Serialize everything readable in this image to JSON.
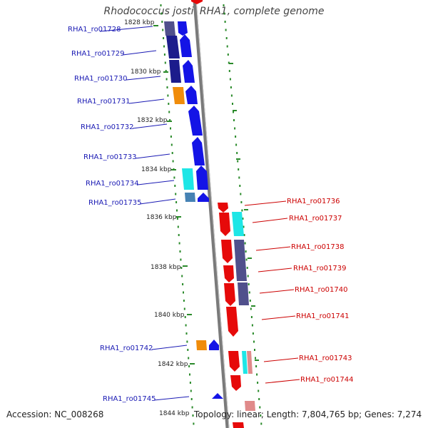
{
  "title": "Rhodococcus jostii RHA1, complete genome",
  "footer": {
    "accession": "Accession: NC_008268",
    "summary": "Topology: linear; Length: 7,804,765 bp; Genes: 7,274"
  },
  "colors": {
    "backbone": "#7a7a7a",
    "left_label": "#1a1ab4",
    "right_label": "#cc0000",
    "tick_dot": "#2a8a2a",
    "navy": "#1c1c8c",
    "blue": "#1414e6",
    "orange": "#f08c0a",
    "cyan": "#1ee6e6",
    "steel": "#4682b4",
    "red": "#e60a0a",
    "purple": "#50508c",
    "pink": "#e08a8a"
  },
  "scale_labels": [
    "1828 kbp",
    "1830 kbp",
    "1832 kbp",
    "1834 kbp",
    "1836 kbp",
    "1838 kbp",
    "1840 kbp",
    "1842 kbp",
    "1844 kbp"
  ],
  "left_genes": [
    "RHA1_ro01728",
    "RHA1_ro01729",
    "RHA1_ro01730",
    "RHA1_ro01731",
    "RHA1_ro01732",
    "RHA1_ro01733",
    "RHA1_ro01734",
    "RHA1_ro01735",
    "RHA1_ro01742",
    "RHA1_ro01745"
  ],
  "right_genes": [
    "RHA1_ro01736",
    "RHA1_ro01737",
    "RHA1_ro01738",
    "RHA1_ro01739",
    "RHA1_ro01740",
    "RHA1_ro01741",
    "RHA1_ro01743",
    "RHA1_ro01744"
  ]
}
